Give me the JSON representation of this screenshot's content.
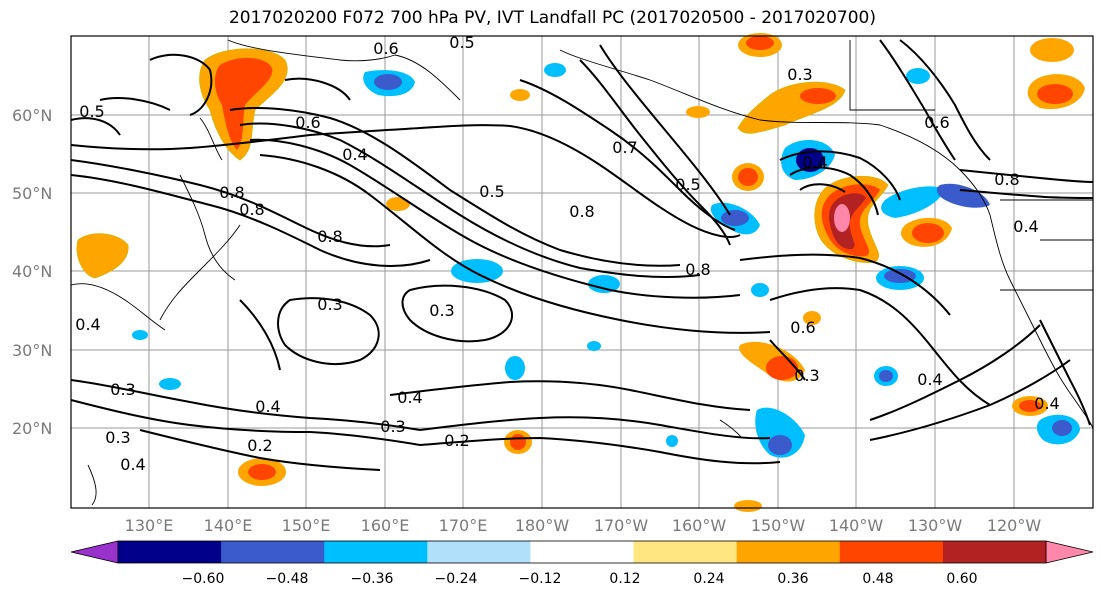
{
  "title": "2017020200 F072 700 hPa PV, IVT Landfall PC (2017020500 - 2017020700)",
  "lat_labels": [
    "60°N",
    "50°N",
    "40°N",
    "30°N",
    "20°N"
  ],
  "lon_labels": [
    "130°E",
    "140°E",
    "150°E",
    "160°E",
    "170°E",
    "180°W",
    "170°W",
    "160°W",
    "150°W",
    "140°W",
    "130°W",
    "120°W"
  ],
  "contour_labels": [
    "0.6",
    "0.5",
    "0.5",
    "0.6",
    "0.4",
    "0.3",
    "0.4",
    "0.8",
    "0.6",
    "0.5",
    "0.8",
    "0.7",
    "0.8",
    "0.8",
    "0.5",
    "0.8",
    "0.4",
    "0.3",
    "0.3",
    "0.6",
    "0.4",
    "0.3",
    "0.4",
    "0.3",
    "0.2",
    "0.4",
    "0.3",
    "0.4",
    "0.2",
    "0.8",
    "0.4",
    "0.3",
    "0.4"
  ],
  "colorbar": {
    "ticks": [
      "−0.60",
      "−0.48",
      "−0.36",
      "−0.24",
      "−0.12",
      "0.12",
      "0.24",
      "0.36",
      "0.48",
      "0.60"
    ],
    "colors": [
      "#9932cc",
      "#00008b",
      "#3b5bcc",
      "#00bfff",
      "#b0e0fa",
      "#ffffff",
      "#ffe680",
      "#ffa500",
      "#ff4500",
      "#b22222",
      "#ff88aa"
    ]
  }
}
